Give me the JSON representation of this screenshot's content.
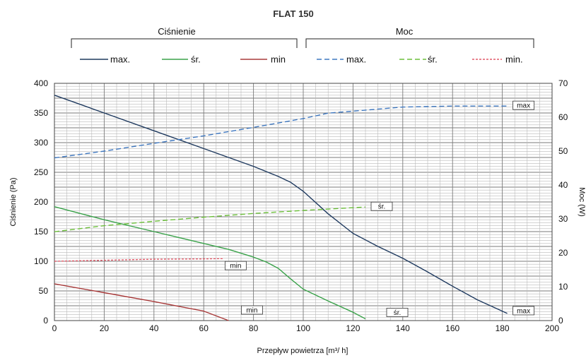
{
  "chart_data": {
    "type": "line",
    "title": "FLAT 150",
    "group_labels": {
      "left": "Ciśnienie",
      "right": "Moc"
    },
    "xlabel": "Przepływ powietrza [m³/ h]",
    "ylabel": "Ciśnienie (Pa)",
    "y2label": "Moc (W)",
    "xlim": [
      0,
      200
    ],
    "ylim": [
      0,
      400
    ],
    "y2lim": [
      0,
      70
    ],
    "xticks": [
      "0",
      "20",
      "40",
      "60",
      "80",
      "100",
      "120",
      "140",
      "160",
      "180",
      "200"
    ],
    "yticks": [
      "0",
      "50",
      "100",
      "150",
      "200",
      "250",
      "300",
      "350",
      "400"
    ],
    "y2ticks": [
      "0",
      "10",
      "20",
      "30",
      "40",
      "50",
      "60",
      "70"
    ],
    "grid": true,
    "legend_position": "top",
    "series": [
      {
        "name": "max.",
        "group": "Ciśnienie",
        "axis": "left",
        "dash": "solid",
        "color": "#1f3a5f",
        "annotation": "max",
        "points": [
          [
            0,
            380
          ],
          [
            20,
            350
          ],
          [
            40,
            320
          ],
          [
            60,
            290
          ],
          [
            80,
            260
          ],
          [
            90,
            243
          ],
          [
            95,
            233
          ],
          [
            100,
            218
          ],
          [
            110,
            180
          ],
          [
            120,
            147
          ],
          [
            130,
            125
          ],
          [
            140,
            105
          ],
          [
            150,
            82
          ],
          [
            160,
            58
          ],
          [
            170,
            35
          ],
          [
            182,
            12
          ]
        ]
      },
      {
        "name": "śr.",
        "group": "Ciśnienie",
        "axis": "left",
        "dash": "solid",
        "color": "#3aa24a",
        "annotation": "śr.",
        "points": [
          [
            0,
            192
          ],
          [
            20,
            170
          ],
          [
            40,
            150
          ],
          [
            60,
            130
          ],
          [
            70,
            120
          ],
          [
            80,
            107
          ],
          [
            85,
            99
          ],
          [
            90,
            88
          ],
          [
            95,
            70
          ],
          [
            100,
            53
          ],
          [
            110,
            33
          ],
          [
            120,
            14
          ],
          [
            125,
            3
          ]
        ]
      },
      {
        "name": "min",
        "group": "Ciśnienie",
        "axis": "left",
        "dash": "solid",
        "color": "#a83a3a",
        "annotation": "min",
        "points": [
          [
            0,
            62
          ],
          [
            20,
            47
          ],
          [
            40,
            32
          ],
          [
            60,
            16
          ],
          [
            70,
            0
          ]
        ]
      },
      {
        "name": "max.",
        "group": "Moc",
        "axis": "right",
        "dash": "dashed",
        "color": "#3f78c0",
        "annotation": "max",
        "points": [
          [
            0,
            48
          ],
          [
            20,
            50
          ],
          [
            40,
            52.3
          ],
          [
            60,
            54.5
          ],
          [
            80,
            57
          ],
          [
            100,
            59.6
          ],
          [
            110,
            61.2
          ],
          [
            120,
            61.8
          ],
          [
            140,
            63
          ],
          [
            160,
            63.3
          ],
          [
            182,
            63.3
          ]
        ]
      },
      {
        "name": "śr.",
        "group": "Moc",
        "axis": "right",
        "dash": "dashed",
        "color": "#6cbf3a",
        "annotation": "śr.",
        "points": [
          [
            0,
            26.2
          ],
          [
            20,
            28
          ],
          [
            40,
            29.3
          ],
          [
            60,
            30.5
          ],
          [
            80,
            31.6
          ],
          [
            100,
            32.5
          ],
          [
            125,
            33.5
          ]
        ]
      },
      {
        "name": "min.",
        "group": "Moc",
        "axis": "right",
        "dash": "dotted",
        "color": "#e05b6a",
        "annotation": "min",
        "points": [
          [
            0,
            17.5
          ],
          [
            20,
            17.8
          ],
          [
            40,
            18.1
          ],
          [
            60,
            18.2
          ],
          [
            68,
            18.3
          ]
        ]
      }
    ]
  }
}
